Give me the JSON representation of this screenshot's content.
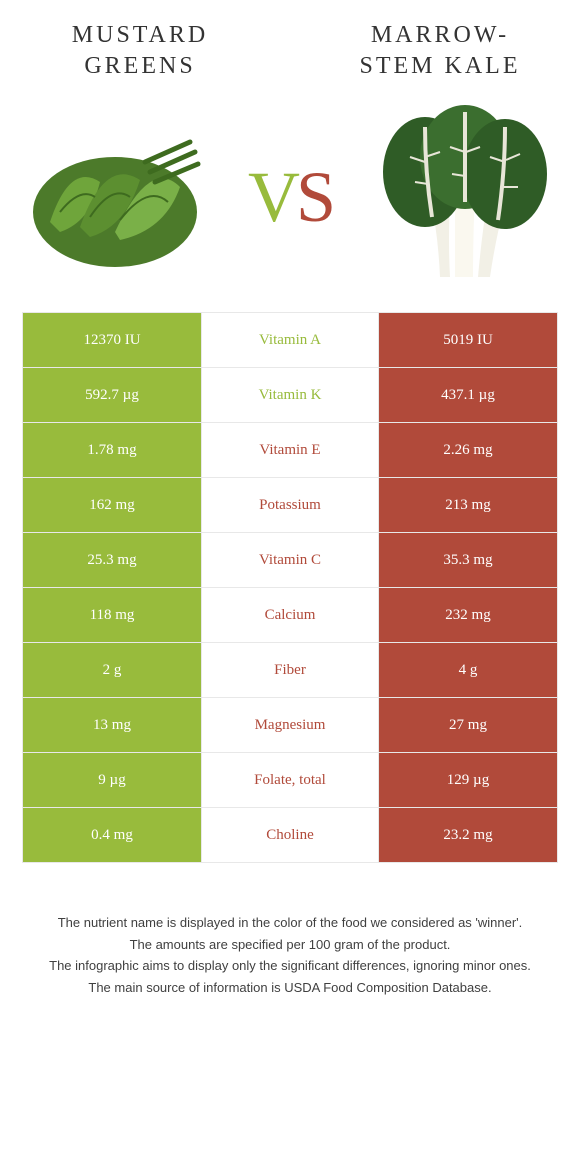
{
  "colors": {
    "left": "#98bb3c",
    "right": "#b14a3a",
    "row_border": "#e8e8e8",
    "text_dark": "#333333",
    "footnote": "#404040"
  },
  "header": {
    "left_title_l1": "MUSTARD",
    "left_title_l2": "GREENS",
    "right_title_l1": "MARROW-",
    "right_title_l2": "STEM KALE"
  },
  "vs": {
    "v": "V",
    "s": "S"
  },
  "rows": [
    {
      "nutrient": "Vitamin A",
      "left": "12370 IU",
      "right": "5019 IU",
      "winner": "left"
    },
    {
      "nutrient": "Vitamin K",
      "left": "592.7 µg",
      "right": "437.1 µg",
      "winner": "left"
    },
    {
      "nutrient": "Vitamin E",
      "left": "1.78 mg",
      "right": "2.26 mg",
      "winner": "right"
    },
    {
      "nutrient": "Potassium",
      "left": "162 mg",
      "right": "213 mg",
      "winner": "right"
    },
    {
      "nutrient": "Vitamin C",
      "left": "25.3 mg",
      "right": "35.3 mg",
      "winner": "right"
    },
    {
      "nutrient": "Calcium",
      "left": "118 mg",
      "right": "232 mg",
      "winner": "right"
    },
    {
      "nutrient": "Fiber",
      "left": "2 g",
      "right": "4 g",
      "winner": "right"
    },
    {
      "nutrient": "Magnesium",
      "left": "13 mg",
      "right": "27 mg",
      "winner": "right"
    },
    {
      "nutrient": "Folate, total",
      "left": "9 µg",
      "right": "129 µg",
      "winner": "right"
    },
    {
      "nutrient": "Choline",
      "left": "0.4 mg",
      "right": "23.2 mg",
      "winner": "right"
    }
  ],
  "footnotes": {
    "l1": "The nutrient name is displayed in the color of the food we considered as 'winner'.",
    "l2": "The amounts are specified per 100 gram of the product.",
    "l3": "The infographic aims to display only the significant differences, ignoring minor ones.",
    "l4": "The main source of information is USDA Food Composition Database."
  }
}
